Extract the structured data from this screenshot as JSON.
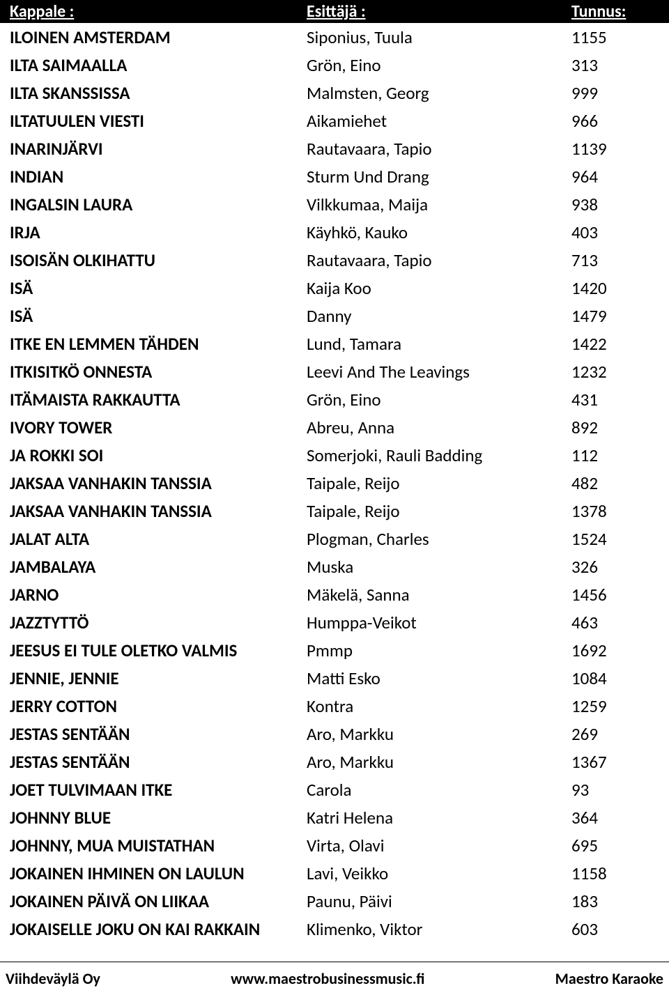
{
  "header": {
    "song_label": "Kappale :",
    "artist_label": "Esittäjä :",
    "id_label": "Tunnus:"
  },
  "rows": [
    {
      "song": "ILOINEN AMSTERDAM",
      "artist": "Siponius, Tuula",
      "id": "1155"
    },
    {
      "song": "ILTA SAIMAALLA",
      "artist": "Grön, Eino",
      "id": "313"
    },
    {
      "song": "ILTA SKANSSISSA",
      "artist": "Malmsten, Georg",
      "id": "999"
    },
    {
      "song": "ILTATUULEN VIESTI",
      "artist": "Aikamiehet",
      "id": "966"
    },
    {
      "song": "INARINJÄRVI",
      "artist": "Rautavaara, Tapio",
      "id": "1139"
    },
    {
      "song": "INDIAN",
      "artist": "Sturm Und Drang",
      "id": "964"
    },
    {
      "song": "INGALSIN LAURA",
      "artist": "Vilkkumaa, Maija",
      "id": "938"
    },
    {
      "song": "IRJA",
      "artist": "Käyhkö, Kauko",
      "id": "403"
    },
    {
      "song": "ISOISÄN OLKIHATTU",
      "artist": "Rautavaara, Tapio",
      "id": "713"
    },
    {
      "song": "ISÄ",
      "artist": "Kaija Koo",
      "id": "1420"
    },
    {
      "song": "ISÄ",
      "artist": "Danny",
      "id": "1479"
    },
    {
      "song": "ITKE EN LEMMEN TÄHDEN",
      "artist": "Lund, Tamara",
      "id": "1422"
    },
    {
      "song": "ITKISITKÖ ONNESTA",
      "artist": "Leevi And The Leavings",
      "id": "1232"
    },
    {
      "song": "ITÄMAISTA RAKKAUTTA",
      "artist": "Grön, Eino",
      "id": "431"
    },
    {
      "song": "IVORY TOWER",
      "artist": "Abreu, Anna",
      "id": "892"
    },
    {
      "song": "JA ROKKI SOI",
      "artist": "Somerjoki, Rauli Badding",
      "id": "112"
    },
    {
      "song": "JAKSAA VANHAKIN TANSSIA",
      "artist": "Taipale, Reijo",
      "id": "482"
    },
    {
      "song": "JAKSAA VANHAKIN TANSSIA",
      "artist": "Taipale, Reijo",
      "id": "1378"
    },
    {
      "song": "JALAT ALTA",
      "artist": "Plogman, Charles",
      "id": "1524"
    },
    {
      "song": "JAMBALAYA",
      "artist": "Muska",
      "id": "326"
    },
    {
      "song": "JARNO",
      "artist": "Mäkelä, Sanna",
      "id": "1456"
    },
    {
      "song": "JAZZTYTTÖ",
      "artist": "Humppa-Veikot",
      "id": "463"
    },
    {
      "song": "JEESUS EI TULE OLETKO VALMIS",
      "artist": "Pmmp",
      "id": "1692"
    },
    {
      "song": "JENNIE, JENNIE",
      "artist": "Matti Esko",
      "id": "1084"
    },
    {
      "song": "JERRY COTTON",
      "artist": "Kontra",
      "id": "1259"
    },
    {
      "song": "JESTAS SENTÄÄN",
      "artist": "Aro, Markku",
      "id": "269"
    },
    {
      "song": "JESTAS SENTÄÄN",
      "artist": "Aro, Markku",
      "id": "1367"
    },
    {
      "song": "JOET TULVIMAAN ITKE",
      "artist": "Carola",
      "id": "93"
    },
    {
      "song": "JOHNNY BLUE",
      "artist": "Katri Helena",
      "id": "364"
    },
    {
      "song": "JOHNNY, MUA MUISTATHAN",
      "artist": "Virta, Olavi",
      "id": "695"
    },
    {
      "song": "JOKAINEN IHMINEN ON LAULUN",
      "artist": "Lavi, Veikko",
      "id": "1158"
    },
    {
      "song": "JOKAINEN PÄIVÄ ON LIIKAA",
      "artist": "Paunu, Päivi",
      "id": "183"
    },
    {
      "song": "JOKAISELLE JOKU ON KAI RAKKAIN",
      "artist": "Klimenko, Viktor",
      "id": "603"
    }
  ],
  "footer": {
    "company": "Viihdeväylä Oy",
    "website": "www.maestrobusinessmusic.fi",
    "product": "Maestro Karaoke"
  },
  "styles": {
    "header_bg": "#000000",
    "header_text": "#ffffff",
    "body_bg": "#ffffff",
    "text_color": "#000000",
    "header_fontsize": 24,
    "row_fontsize": 25,
    "footer_fontsize": 22
  }
}
